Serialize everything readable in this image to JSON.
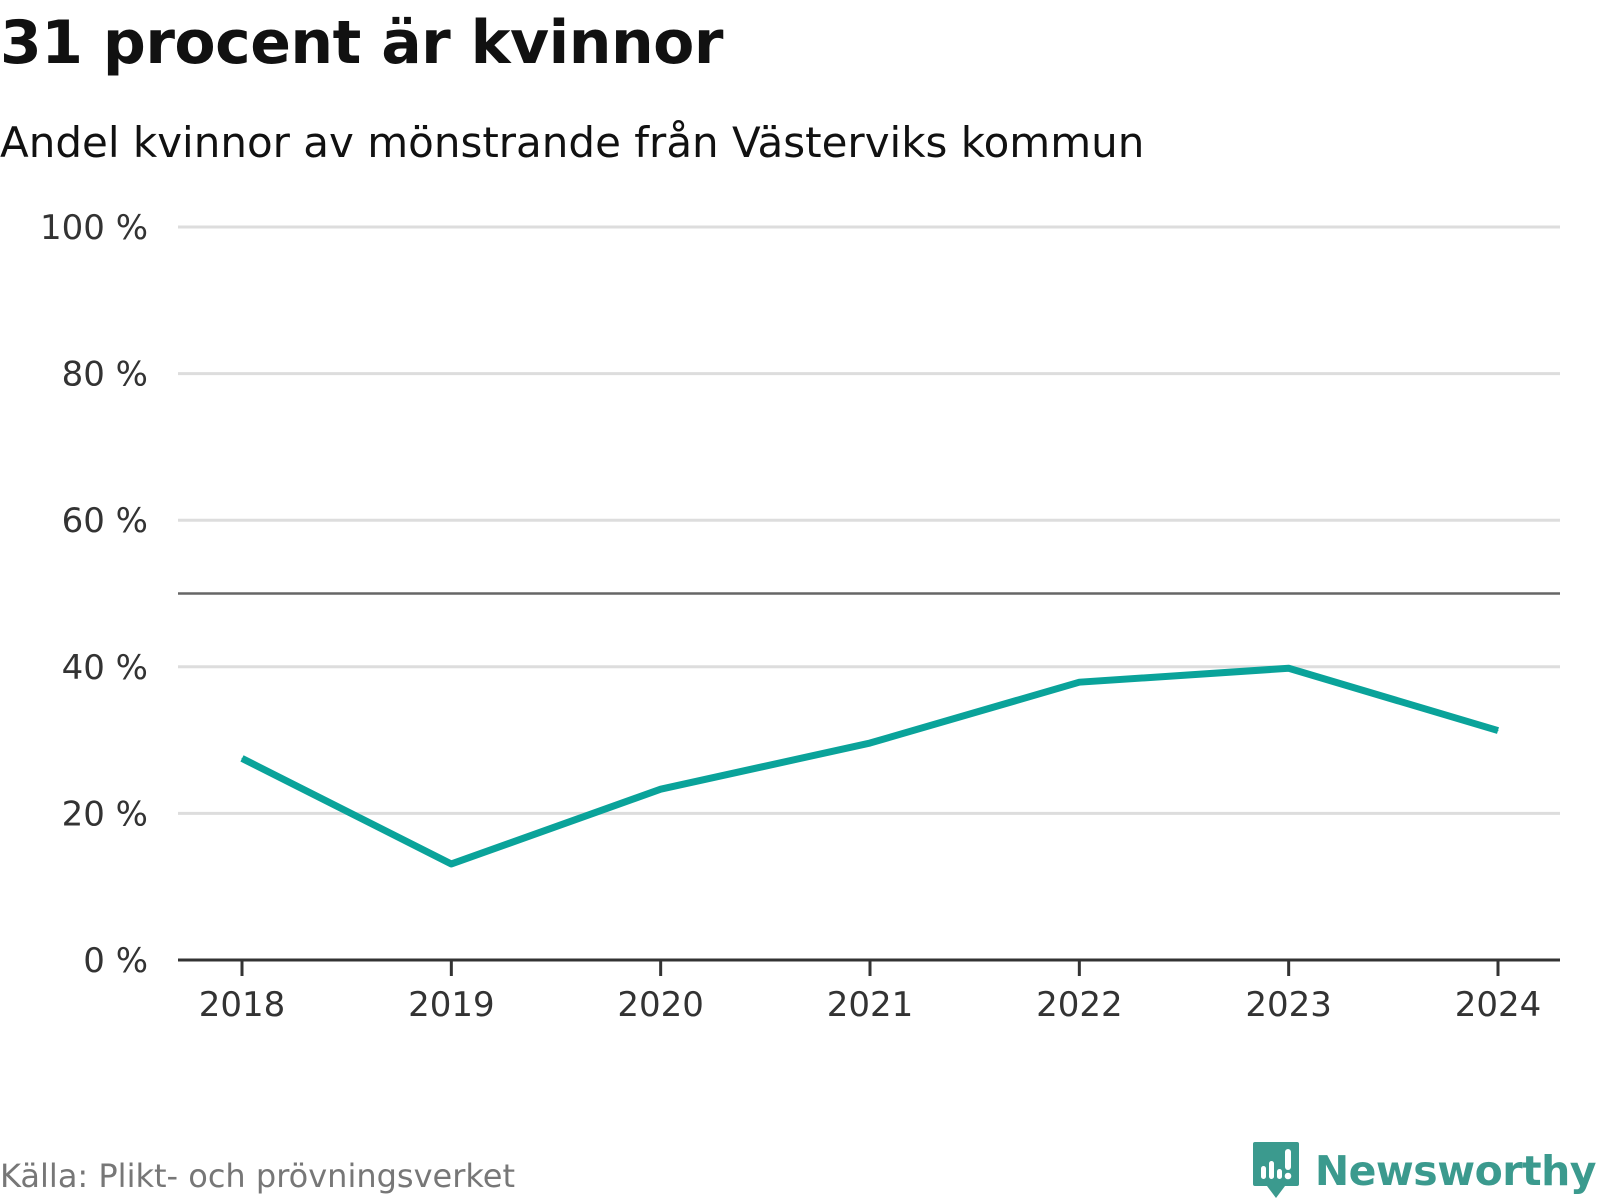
{
  "title": "31 procent är kvinnor",
  "subtitle": "Andel kvinnor av mönstrande från Västerviks kommun",
  "source": "Källa: Plikt- och prövningsverket",
  "brand": {
    "name": "Newsworthy",
    "icon": "newsworthy-logo-icon",
    "color": "#3b9a8e"
  },
  "colors": {
    "line": "#0aa39a",
    "grid": "#dddddd",
    "reference": "#666666",
    "axis": "#333333"
  },
  "chart_data": {
    "type": "line",
    "title": "31 procent är kvinnor",
    "subtitle": "Andel kvinnor av mönstrande från Västerviks kommun",
    "xlabel": "",
    "ylabel": "",
    "x": [
      "2018",
      "2019",
      "2020",
      "2021",
      "2022",
      "2023",
      "2024"
    ],
    "series": [
      {
        "values": [
          27.5,
          13.1,
          23.3,
          29.6,
          37.9,
          39.8,
          31.3
        ]
      }
    ],
    "ylim": [
      0,
      100
    ],
    "yticks": [
      0,
      20,
      40,
      60,
      80,
      100
    ],
    "ytick_labels": [
      "0 %",
      "20 %",
      "40 %",
      "60 %",
      "80 %",
      "100 %"
    ],
    "reference_line": 50,
    "grid": true,
    "legend": "none"
  }
}
